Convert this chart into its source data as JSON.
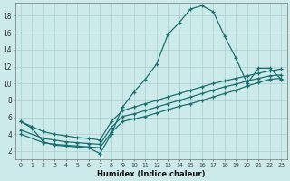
{
  "xlabel": "Humidex (Indice chaleur)",
  "bg_color": "#cceaea",
  "grid_color": "#aacece",
  "line_color": "#1a7070",
  "xlim": [
    -0.5,
    23.5
  ],
  "ylim": [
    1.0,
    19.5
  ],
  "xticks": [
    0,
    1,
    2,
    3,
    4,
    5,
    6,
    7,
    8,
    9,
    10,
    11,
    12,
    13,
    14,
    15,
    16,
    17,
    18,
    19,
    20,
    21,
    22,
    23
  ],
  "yticks": [
    2,
    4,
    6,
    8,
    10,
    12,
    14,
    16,
    18
  ],
  "curve1_x": [
    0,
    1,
    2,
    3,
    4,
    5,
    6,
    7,
    8,
    9,
    10,
    11,
    12,
    13,
    14,
    15,
    16,
    17,
    18,
    19,
    20,
    21,
    22,
    23
  ],
  "curve1_y": [
    5.5,
    4.7,
    3.1,
    2.7,
    2.6,
    2.5,
    2.4,
    1.7,
    4.0,
    7.2,
    9.0,
    10.5,
    12.3,
    15.8,
    17.2,
    18.8,
    19.2,
    18.5,
    15.6,
    13.0,
    10.0,
    11.8,
    11.8,
    10.5
  ],
  "curve2_x": [
    0,
    2,
    3,
    4,
    5,
    6,
    7,
    8,
    9,
    10,
    11,
    12,
    13,
    14,
    15,
    16,
    17,
    18,
    19,
    20,
    21,
    22,
    23
  ],
  "curve2_y": [
    4.0,
    3.0,
    2.8,
    2.7,
    2.6,
    2.5,
    2.4,
    4.2,
    5.5,
    5.8,
    6.1,
    6.5,
    6.9,
    7.3,
    7.6,
    8.0,
    8.4,
    8.8,
    9.2,
    9.7,
    10.1,
    10.5,
    10.6
  ],
  "curve3_x": [
    0,
    2,
    3,
    4,
    5,
    6,
    7,
    8,
    9,
    10,
    11,
    12,
    13,
    14,
    15,
    16,
    17,
    18,
    19,
    20,
    21,
    22,
    23
  ],
  "curve3_y": [
    4.5,
    3.5,
    3.3,
    3.1,
    3.0,
    2.9,
    2.8,
    4.8,
    6.1,
    6.4,
    6.8,
    7.2,
    7.6,
    8.0,
    8.4,
    8.8,
    9.2,
    9.6,
    9.9,
    10.3,
    10.6,
    10.9,
    11.0
  ],
  "curve4_x": [
    0,
    1,
    2,
    3,
    4,
    5,
    6,
    7,
    8,
    9,
    10,
    11,
    12,
    13,
    14,
    15,
    16,
    17,
    18,
    19,
    20,
    21,
    22,
    23
  ],
  "curve4_y": [
    5.5,
    4.9,
    4.3,
    4.0,
    3.8,
    3.6,
    3.5,
    3.3,
    5.5,
    6.8,
    7.2,
    7.6,
    8.0,
    8.4,
    8.8,
    9.2,
    9.6,
    10.0,
    10.3,
    10.6,
    10.9,
    11.2,
    11.5,
    11.7
  ]
}
